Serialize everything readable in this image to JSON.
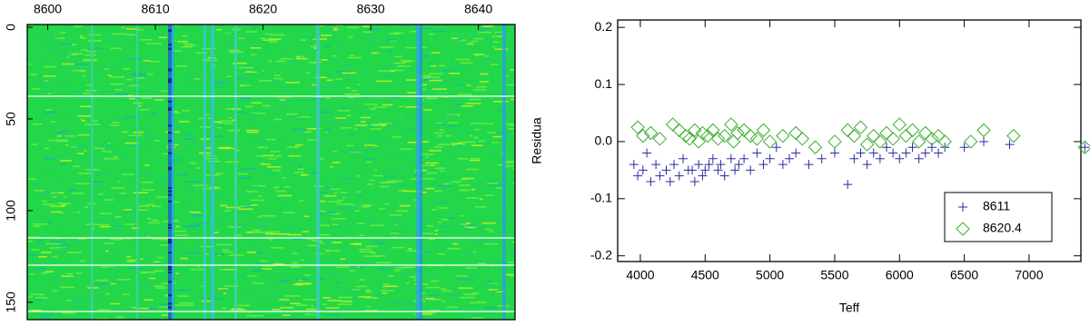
{
  "chart_data": [
    {
      "type": "heatmap",
      "xlim": [
        8598.1,
        8643.4
      ],
      "xticks": [
        8600,
        8610,
        8620,
        8630,
        8640
      ],
      "ylim": [
        -1.5,
        159.5
      ],
      "yticks": [
        0,
        50,
        100,
        150
      ]
    },
    {
      "type": "scatter",
      "xlabel": "Teff",
      "ylabel": "Residua",
      "xlim": [
        3825,
        7400
      ],
      "xticks": [
        4000,
        4500,
        5000,
        5500,
        6000,
        6500,
        7000
      ],
      "ylim": [
        -0.21,
        0.213
      ],
      "yticks": [
        -0.2,
        -0.1,
        {
          "value": 0,
          "label": "0.0"
        },
        0.1,
        0.2
      ],
      "legend": "lower right",
      "series": [
        {
          "name": "8611",
          "color": "#2b2ba6",
          "marker": "plus",
          "x": [
            3950,
            3980,
            4020,
            4050,
            4080,
            4120,
            4150,
            4200,
            4230,
            4260,
            4300,
            4330,
            4370,
            4400,
            4420,
            4450,
            4480,
            4500,
            4530,
            4560,
            4600,
            4620,
            4650,
            4700,
            4730,
            4760,
            4800,
            4850,
            4900,
            4950,
            5000,
            5050,
            5100,
            5150,
            5200,
            5300,
            5400,
            5500,
            5600,
            5650,
            5700,
            5750,
            5800,
            5850,
            5900,
            5950,
            6000,
            6050,
            6100,
            6150,
            6200,
            6250,
            6300,
            6350,
            6500,
            6650,
            6850,
            7430
          ],
          "values": [
            -0.04,
            -0.06,
            -0.05,
            -0.02,
            -0.07,
            -0.04,
            -0.06,
            -0.05,
            -0.07,
            -0.04,
            -0.06,
            -0.03,
            -0.05,
            -0.05,
            -0.07,
            -0.04,
            -0.06,
            -0.05,
            -0.04,
            -0.03,
            -0.05,
            -0.04,
            -0.06,
            -0.03,
            -0.05,
            -0.04,
            -0.03,
            -0.05,
            -0.02,
            -0.04,
            -0.03,
            -0.01,
            -0.04,
            -0.03,
            -0.02,
            -0.04,
            -0.03,
            -0.02,
            -0.075,
            -0.03,
            -0.02,
            -0.04,
            -0.02,
            -0.03,
            -0.01,
            -0.02,
            -0.03,
            -0.02,
            -0.01,
            -0.03,
            -0.02,
            -0.01,
            -0.02,
            -0.01,
            -0.01,
            0.0,
            -0.005,
            -0.01
          ]
        },
        {
          "name": "8620.4",
          "color": "#3aae2e",
          "marker": "diamond",
          "x": [
            3980,
            4020,
            4080,
            4150,
            4250,
            4300,
            4350,
            4380,
            4420,
            4450,
            4480,
            4520,
            4560,
            4600,
            4650,
            4700,
            4720,
            4750,
            4800,
            4850,
            4900,
            4950,
            5000,
            5100,
            5200,
            5250,
            5350,
            5500,
            5600,
            5650,
            5700,
            5750,
            5800,
            5850,
            5900,
            5950,
            6000,
            6050,
            6100,
            6150,
            6200,
            6250,
            6300,
            6350,
            6550,
            6650,
            6880,
            7430
          ],
          "values": [
            0.025,
            0.01,
            0.015,
            0.005,
            0.03,
            0.02,
            0.01,
            0.005,
            0.02,
            0.0,
            0.015,
            0.01,
            0.02,
            0.005,
            0.01,
            0.03,
            0.0,
            0.015,
            0.02,
            0.01,
            0.005,
            0.02,
            0.0,
            0.01,
            0.015,
            0.005,
            -0.01,
            0.0,
            0.02,
            0.01,
            0.025,
            -0.005,
            0.01,
            0.0,
            0.015,
            0.005,
            0.03,
            0.01,
            0.02,
            0.0,
            0.015,
            0.005,
            0.01,
            0.0,
            0.0,
            0.02,
            0.01,
            -0.01
          ]
        }
      ]
    }
  ]
}
